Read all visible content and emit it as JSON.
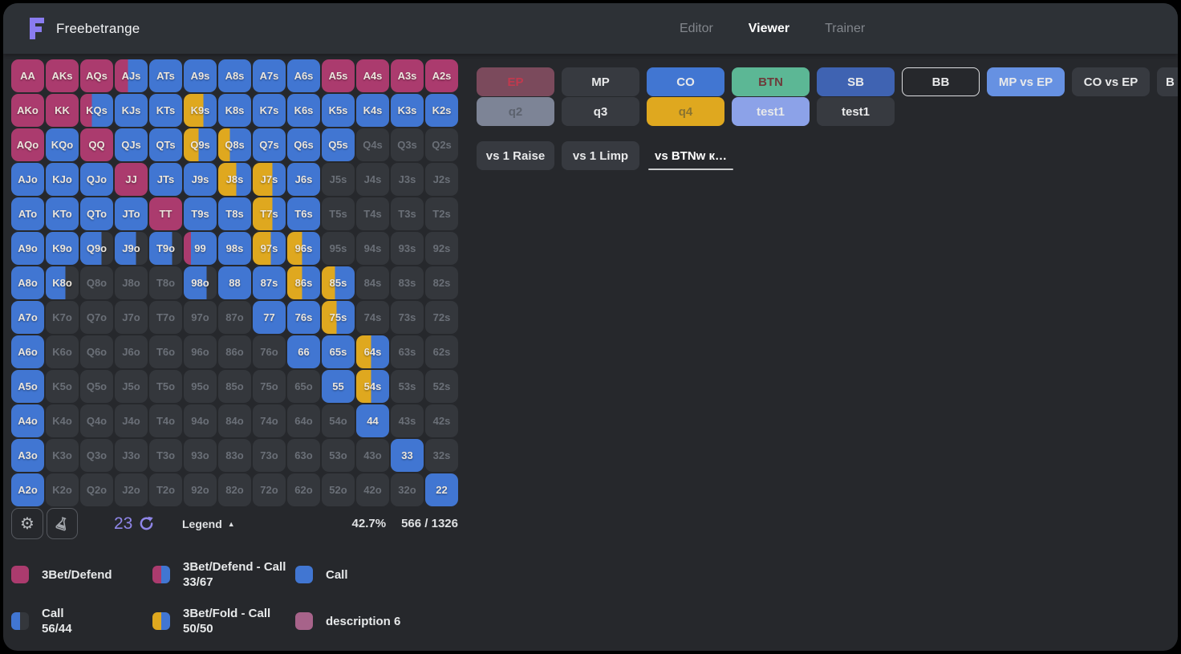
{
  "brand": {
    "name": "Freebetrange"
  },
  "nav": {
    "items": [
      {
        "label": "Editor",
        "active": false
      },
      {
        "label": "Viewer",
        "active": true
      },
      {
        "label": "Trainer",
        "active": false
      }
    ]
  },
  "colors": {
    "magenta": "#ab3b6e",
    "blue": "#4176d2",
    "yellow": "#dfa81f",
    "empty": "#34373c",
    "mauve": "#a7638a",
    "accent_purple": "#8f86e8",
    "green": "#5cb795"
  },
  "positions_row1": [
    {
      "label": "EP",
      "style": "ep"
    },
    {
      "label": "MP",
      "style": ""
    },
    {
      "label": "CO",
      "style": "blue"
    },
    {
      "label": "BTN",
      "style": "green"
    },
    {
      "label": "SB",
      "style": "darkblue"
    },
    {
      "label": "BB",
      "style": "outline"
    },
    {
      "label": "MP vs EP",
      "style": "lightblue"
    },
    {
      "label": "CO vs EP",
      "style": ""
    },
    {
      "label": "B",
      "style": "partial"
    }
  ],
  "positions_row2": [
    {
      "label": "q2",
      "style": "gray"
    },
    {
      "label": "q3",
      "style": ""
    },
    {
      "label": "q4",
      "style": "yellow"
    },
    {
      "label": "test1",
      "style": "periwinkle"
    },
    {
      "label": "test1",
      "style": ""
    }
  ],
  "action_tabs": [
    {
      "label": "vs 1 Raise",
      "active": false
    },
    {
      "label": "vs 1 Limp",
      "active": false
    },
    {
      "label": "vs BTNw к…",
      "active": true
    }
  ],
  "footer": {
    "combo_weight": "23",
    "legend_label": "Legend",
    "triangle": "▲",
    "range_percent": "42.7%",
    "combo_count": "566 / 1326"
  },
  "legend": {
    "items": [
      {
        "swatch": [
          "m"
        ],
        "lines": [
          "3Bet/Defend"
        ]
      },
      {
        "swatch": [
          "m",
          "b"
        ],
        "lines": [
          "3Bet/Defend - Call",
          "33/67"
        ]
      },
      {
        "swatch": [
          "b"
        ],
        "lines": [
          "Call"
        ]
      },
      {
        "swatch": [
          "b",
          "e"
        ],
        "lines": [
          "Call",
          "56/44"
        ]
      },
      {
        "swatch": [
          "y",
          "b"
        ],
        "lines": [
          "3Bet/Fold - Call",
          "50/50"
        ]
      },
      {
        "swatch": [
          "v"
        ],
        "lines": [
          "description 6"
        ]
      }
    ]
  },
  "grid": {
    "rows": [
      [
        [
          "AA",
          "m"
        ],
        [
          "AKs",
          "m"
        ],
        [
          "AQs",
          "m"
        ],
        [
          "AJs",
          [
            [
              "m",
              40
            ],
            [
              "b",
              60
            ]
          ]
        ],
        [
          "ATs",
          "b"
        ],
        [
          "A9s",
          "b"
        ],
        [
          "A8s",
          "b"
        ],
        [
          "A7s",
          "b"
        ],
        [
          "A6s",
          "b"
        ],
        [
          "A5s",
          "m"
        ],
        [
          "A4s",
          "m"
        ],
        [
          "A3s",
          "m"
        ],
        [
          "A2s",
          "m"
        ]
      ],
      [
        [
          "AKo",
          "m"
        ],
        [
          "KK",
          "m"
        ],
        [
          "KQs",
          [
            [
              "m",
              35
            ],
            [
              "b",
              65
            ]
          ]
        ],
        [
          "KJs",
          "b"
        ],
        [
          "KTs",
          "b"
        ],
        [
          "K9s",
          [
            [
              "y",
              60
            ],
            [
              "b",
              40
            ]
          ]
        ],
        [
          "K8s",
          "b"
        ],
        [
          "K7s",
          "b"
        ],
        [
          "K6s",
          "b"
        ],
        [
          "K5s",
          "b"
        ],
        [
          "K4s",
          "b"
        ],
        [
          "K3s",
          "b"
        ],
        [
          "K2s",
          "b"
        ]
      ],
      [
        [
          "AQo",
          "m"
        ],
        [
          "KQo",
          "b"
        ],
        [
          "QQ",
          "m"
        ],
        [
          "QJs",
          "b"
        ],
        [
          "QTs",
          "b"
        ],
        [
          "Q9s",
          [
            [
              "y",
              45
            ],
            [
              "b",
              55
            ]
          ]
        ],
        [
          "Q8s",
          [
            [
              "y",
              35
            ],
            [
              "b",
              65
            ]
          ]
        ],
        [
          "Q7s",
          "b"
        ],
        [
          "Q6s",
          "b"
        ],
        [
          "Q5s",
          "b"
        ],
        [
          "Q4s",
          null
        ],
        [
          "Q3s",
          null
        ],
        [
          "Q2s",
          null
        ]
      ],
      [
        [
          "AJo",
          "b"
        ],
        [
          "KJo",
          "b"
        ],
        [
          "QJo",
          "b"
        ],
        [
          "JJ",
          "m"
        ],
        [
          "JTs",
          "b"
        ],
        [
          "J9s",
          "b"
        ],
        [
          "J8s",
          [
            [
              "y",
              55
            ],
            [
              "b",
              45
            ]
          ]
        ],
        [
          "J7s",
          [
            [
              "y",
              60
            ],
            [
              "b",
              40
            ]
          ]
        ],
        [
          "J6s",
          "b"
        ],
        [
          "J5s",
          null
        ],
        [
          "J4s",
          null
        ],
        [
          "J3s",
          null
        ],
        [
          "J2s",
          null
        ]
      ],
      [
        [
          "ATo",
          "b"
        ],
        [
          "KTo",
          "b"
        ],
        [
          "QTo",
          "b"
        ],
        [
          "JTo",
          "b"
        ],
        [
          "TT",
          "m"
        ],
        [
          "T9s",
          "b"
        ],
        [
          "T8s",
          "b"
        ],
        [
          "T7s",
          [
            [
              "y",
              60
            ],
            [
              "b",
              40
            ]
          ]
        ],
        [
          "T6s",
          "b"
        ],
        [
          "T5s",
          null
        ],
        [
          "T4s",
          null
        ],
        [
          "T3s",
          null
        ],
        [
          "T2s",
          null
        ]
      ],
      [
        [
          "A9o",
          "b"
        ],
        [
          "K9o",
          "b"
        ],
        [
          "Q9o",
          [
            [
              "b",
              65
            ],
            [
              "e",
              35
            ]
          ]
        ],
        [
          "J9o",
          [
            [
              "b",
              65
            ],
            [
              "e",
              35
            ]
          ]
        ],
        [
          "T9o",
          [
            [
              "b",
              70
            ],
            [
              "e",
              30
            ]
          ]
        ],
        [
          "99",
          [
            [
              "m",
              22
            ],
            [
              "b",
              78
            ]
          ]
        ],
        [
          "98s",
          "b"
        ],
        [
          "97s",
          [
            [
              "y",
              55
            ],
            [
              "b",
              45
            ]
          ]
        ],
        [
          "96s",
          [
            [
              "y",
              45
            ],
            [
              "b",
              55
            ]
          ]
        ],
        [
          "95s",
          null
        ],
        [
          "94s",
          null
        ],
        [
          "93s",
          null
        ],
        [
          "92s",
          null
        ]
      ],
      [
        [
          "A8o",
          "b"
        ],
        [
          "K8o",
          [
            [
              "b",
              60
            ],
            [
              "e",
              40
            ]
          ]
        ],
        [
          "Q8o",
          null
        ],
        [
          "J8o",
          null
        ],
        [
          "T8o",
          null
        ],
        [
          "98o",
          [
            [
              "b",
              70
            ],
            [
              "e",
              30
            ]
          ]
        ],
        [
          "88",
          "b"
        ],
        [
          "87s",
          "b"
        ],
        [
          "86s",
          [
            [
              "y",
              45
            ],
            [
              "b",
              55
            ]
          ]
        ],
        [
          "85s",
          [
            [
              "y",
              40
            ],
            [
              "b",
              60
            ]
          ]
        ],
        [
          "84s",
          null
        ],
        [
          "83s",
          null
        ],
        [
          "82s",
          null
        ]
      ],
      [
        [
          "A7o",
          "b"
        ],
        [
          "K7o",
          null
        ],
        [
          "Q7o",
          null
        ],
        [
          "J7o",
          null
        ],
        [
          "T7o",
          null
        ],
        [
          "97o",
          null
        ],
        [
          "87o",
          null
        ],
        [
          "77",
          "b"
        ],
        [
          "76s",
          "b"
        ],
        [
          "75s",
          [
            [
              "y",
              45
            ],
            [
              "b",
              55
            ]
          ]
        ],
        [
          "74s",
          null
        ],
        [
          "73s",
          null
        ],
        [
          "72s",
          null
        ]
      ],
      [
        [
          "A6o",
          "b"
        ],
        [
          "K6o",
          null
        ],
        [
          "Q6o",
          null
        ],
        [
          "J6o",
          null
        ],
        [
          "T6o",
          null
        ],
        [
          "96o",
          null
        ],
        [
          "86o",
          null
        ],
        [
          "76o",
          null
        ],
        [
          "66",
          "b"
        ],
        [
          "65s",
          "b"
        ],
        [
          "64s",
          [
            [
              "y",
              45
            ],
            [
              "b",
              55
            ]
          ]
        ],
        [
          "63s",
          null
        ],
        [
          "62s",
          null
        ]
      ],
      [
        [
          "A5o",
          "b"
        ],
        [
          "K5o",
          null
        ],
        [
          "Q5o",
          null
        ],
        [
          "J5o",
          null
        ],
        [
          "T5o",
          null
        ],
        [
          "95o",
          null
        ],
        [
          "85o",
          null
        ],
        [
          "75o",
          null
        ],
        [
          "65o",
          null
        ],
        [
          "55",
          "b"
        ],
        [
          "54s",
          [
            [
              "y",
              45
            ],
            [
              "b",
              55
            ]
          ]
        ],
        [
          "53s",
          null
        ],
        [
          "52s",
          null
        ]
      ],
      [
        [
          "A4o",
          "b"
        ],
        [
          "K4o",
          null
        ],
        [
          "Q4o",
          null
        ],
        [
          "J4o",
          null
        ],
        [
          "T4o",
          null
        ],
        [
          "94o",
          null
        ],
        [
          "84o",
          null
        ],
        [
          "74o",
          null
        ],
        [
          "64o",
          null
        ],
        [
          "54o",
          null
        ],
        [
          "44",
          "b"
        ],
        [
          "43s",
          null
        ],
        [
          "42s",
          null
        ]
      ],
      [
        [
          "A3o",
          "b"
        ],
        [
          "K3o",
          null
        ],
        [
          "Q3o",
          null
        ],
        [
          "J3o",
          null
        ],
        [
          "T3o",
          null
        ],
        [
          "93o",
          null
        ],
        [
          "83o",
          null
        ],
        [
          "73o",
          null
        ],
        [
          "63o",
          null
        ],
        [
          "53o",
          null
        ],
        [
          "43o",
          null
        ],
        [
          "33",
          "b"
        ],
        [
          "32s",
          null
        ]
      ],
      [
        [
          "A2o",
          "b"
        ],
        [
          "K2o",
          null
        ],
        [
          "Q2o",
          null
        ],
        [
          "J2o",
          null
        ],
        [
          "T2o",
          null
        ],
        [
          "92o",
          null
        ],
        [
          "82o",
          null
        ],
        [
          "72o",
          null
        ],
        [
          "62o",
          null
        ],
        [
          "52o",
          null
        ],
        [
          "42o",
          null
        ],
        [
          "32o",
          null
        ],
        [
          "22",
          "b"
        ]
      ]
    ]
  }
}
